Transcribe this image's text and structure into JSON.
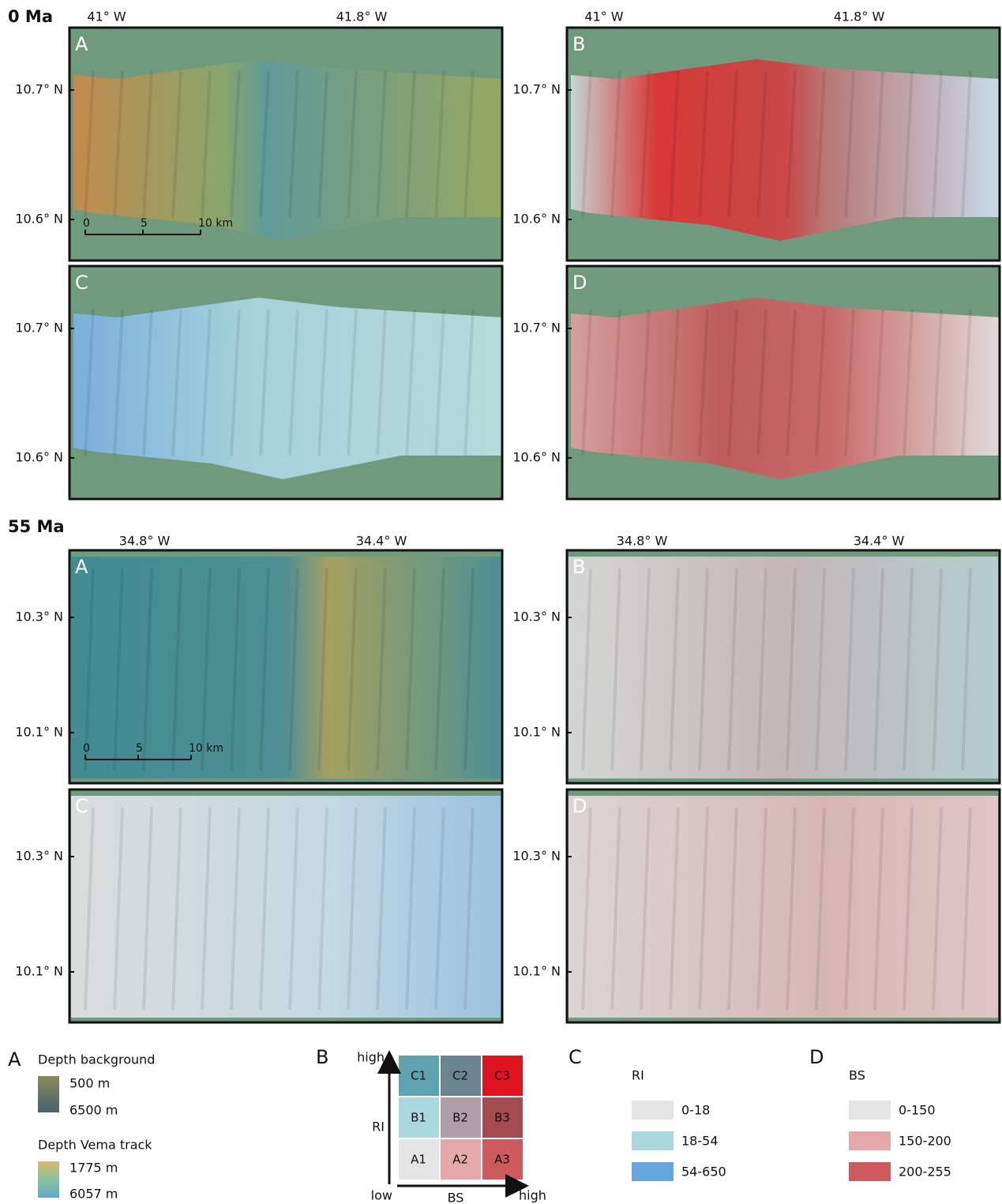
{
  "sections": [
    {
      "title": "0 Ma",
      "x_labels": [
        "41° W",
        "41.8° W"
      ],
      "y_labels": [
        "10.7° N",
        "10.6° N"
      ],
      "panels": [
        "A",
        "B",
        "C",
        "D"
      ],
      "scale_bar": [
        "0",
        "5",
        "10 km"
      ]
    },
    {
      "title": "55 Ma",
      "x_labels": [
        "34.8° W",
        "34.4° W"
      ],
      "y_labels": [
        "10.3° N",
        "10.1° N"
      ],
      "panels": [
        "A",
        "B",
        "C",
        "D"
      ],
      "scale_bar": [
        "0",
        "5",
        "10 km"
      ]
    }
  ],
  "legend_a": {
    "label": "A",
    "title": "Depth background",
    "min": "500 m",
    "max": "6500 m",
    "title2": "Depth Vema track",
    "min2": "1775 m",
    "max2": "6057 m"
  },
  "legend_b": {
    "label": "B",
    "y_high": "high",
    "y_axis": "RI",
    "y_low": "low",
    "x_axis": "BS",
    "x_high": "high",
    "cells": [
      [
        "C1",
        "C2",
        "C3"
      ],
      [
        "B1",
        "B2",
        "B3"
      ],
      [
        "A1",
        "A2",
        "A3"
      ]
    ]
  },
  "legend_c": {
    "label": "C",
    "title": "RI",
    "classes": [
      "0-18",
      "18-54",
      "54-650"
    ]
  },
  "legend_d": {
    "label": "D",
    "title": "BS",
    "classes": [
      "0-150",
      "150-200",
      "200-255"
    ]
  }
}
